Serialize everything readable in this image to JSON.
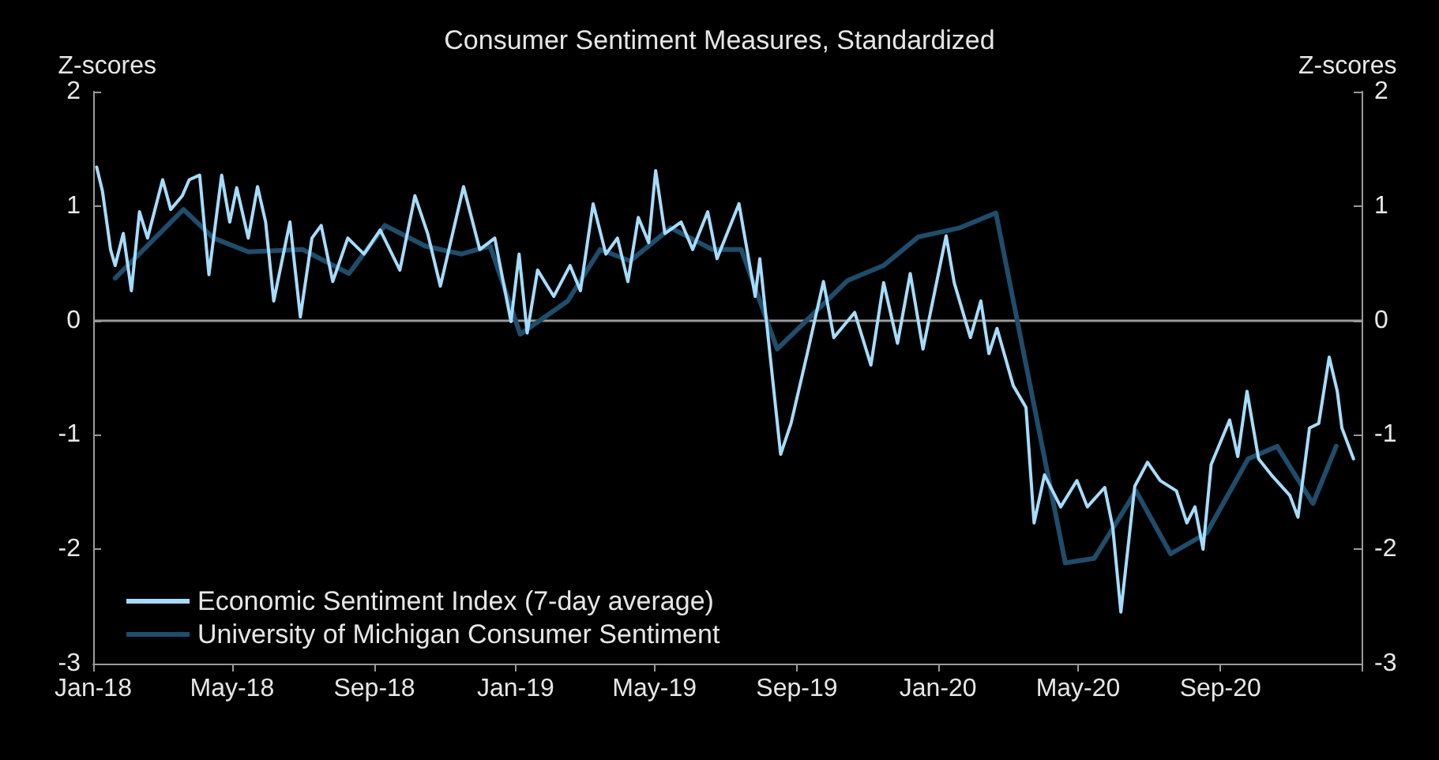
{
  "chart_data": {
    "type": "line",
    "title": "Consumer Sentiment Measures, Standardized",
    "ylabel": "Z-scores",
    "y2label": "Z-scores",
    "ylim": [
      -3,
      2
    ],
    "yticks": [
      -3,
      -2,
      -1,
      0,
      1,
      2
    ],
    "y2lim": [
      -3,
      2
    ],
    "y2ticks": [
      -3,
      -2,
      -1,
      0,
      1,
      2
    ],
    "xlim": [
      "2018-01-01",
      "2021-01-01"
    ],
    "xticks": [
      {
        "value": "2018-01-01",
        "label": "Jan-18"
      },
      {
        "value": "2018-05-01",
        "label": "May-18"
      },
      {
        "value": "2018-09-01",
        "label": "Sep-18"
      },
      {
        "value": "2019-01-01",
        "label": "Jan-19"
      },
      {
        "value": "2019-05-01",
        "label": "May-19"
      },
      {
        "value": "2019-09-01",
        "label": "Sep-19"
      },
      {
        "value": "2020-01-01",
        "label": "Jan-20"
      },
      {
        "value": "2020-05-01",
        "label": "May-20"
      },
      {
        "value": "2020-09-01",
        "label": "Sep-20"
      },
      {
        "value": "2021-01-01",
        "label": null
      }
    ],
    "grid": false,
    "legend": "bottom left",
    "marker": "none",
    "line_style": "solid",
    "ref_lines": [
      {
        "axis": "y",
        "value": 0,
        "color": "#9a9a9a"
      }
    ],
    "series": [
      {
        "name": "Economic Sentiment Index (7-day average)",
        "color": "#a6dcfb",
        "x": [
          "2018-01-04",
          "2018-01-09",
          "2018-01-16",
          "2018-01-20",
          "2018-01-27",
          "2018-02-03",
          "2018-02-10",
          "2018-02-17",
          "2018-03-02",
          "2018-03-09",
          "2018-03-19",
          "2018-03-25",
          "2018-04-03",
          "2018-04-11",
          "2018-04-22",
          "2018-04-29",
          "2018-05-05",
          "2018-05-15",
          "2018-05-23",
          "2018-05-30",
          "2018-06-06",
          "2018-06-20",
          "2018-06-29",
          "2018-07-09",
          "2018-07-17",
          "2018-07-27",
          "2018-08-09",
          "2018-08-23",
          "2018-09-06",
          "2018-09-23",
          "2018-10-06",
          "2018-10-17",
          "2018-10-28",
          "2018-11-17",
          "2018-12-01",
          "2018-12-14",
          "2018-12-28",
          "2019-01-04",
          "2019-01-11",
          "2019-01-20",
          "2019-02-03",
          "2019-02-17",
          "2019-02-26",
          "2019-03-09",
          "2019-03-20",
          "2019-03-30",
          "2019-04-08",
          "2019-04-17",
          "2019-04-26",
          "2019-05-02",
          "2019-05-10",
          "2019-05-24",
          "2019-06-03",
          "2019-06-16",
          "2019-06-24",
          "2019-07-13",
          "2019-07-27",
          "2019-07-31",
          "2019-08-18",
          "2019-08-27",
          "2019-09-10",
          "2019-09-24",
          "2019-10-03",
          "2019-10-21",
          "2019-11-04",
          "2019-11-15",
          "2019-11-27",
          "2019-12-08",
          "2019-12-19",
          "2020-01-08",
          "2020-01-15",
          "2020-01-29",
          "2020-02-07",
          "2020-02-14",
          "2020-02-21",
          "2020-03-06",
          "2020-03-17",
          "2020-03-24",
          "2020-04-02",
          "2020-04-16",
          "2020-04-30",
          "2020-05-09",
          "2020-05-24",
          "2020-05-31",
          "2020-06-07",
          "2020-06-19",
          "2020-06-30",
          "2020-07-11",
          "2020-07-25",
          "2020-08-03",
          "2020-08-10",
          "2020-08-17",
          "2020-08-24",
          "2020-09-09",
          "2020-09-16",
          "2020-09-24",
          "2020-10-04",
          "2020-10-15",
          "2020-10-31",
          "2020-11-07",
          "2020-11-17",
          "2020-11-25",
          "2020-12-04",
          "2020-12-11",
          "2020-12-15",
          "2020-12-25"
        ],
        "values": [
          1.34,
          1.13,
          0.62,
          0.48,
          0.76,
          0.26,
          0.95,
          0.72,
          1.23,
          0.97,
          1.09,
          1.23,
          1.27,
          0.4,
          1.27,
          0.86,
          1.16,
          0.72,
          1.17,
          0.86,
          0.17,
          0.86,
          0.03,
          0.72,
          0.83,
          0.34,
          0.72,
          0.58,
          0.79,
          0.44,
          1.09,
          0.76,
          0.3,
          1.17,
          0.62,
          0.72,
          -0.01,
          0.58,
          -0.11,
          0.44,
          0.21,
          0.48,
          0.26,
          1.02,
          0.58,
          0.72,
          0.34,
          0.9,
          0.68,
          1.31,
          0.76,
          0.86,
          0.62,
          0.95,
          0.54,
          1.02,
          0.21,
          0.54,
          -1.17,
          -0.9,
          -0.29,
          0.34,
          -0.15,
          0.07,
          -0.39,
          0.33,
          -0.2,
          0.41,
          -0.25,
          0.74,
          0.33,
          -0.15,
          0.17,
          -0.29,
          -0.07,
          -0.57,
          -0.76,
          -1.77,
          -1.35,
          -1.63,
          -1.4,
          -1.63,
          -1.46,
          -1.81,
          -2.55,
          -1.45,
          -1.24,
          -1.4,
          -1.49,
          -1.77,
          -1.63,
          -2.0,
          -1.26,
          -0.87,
          -1.19,
          -0.62,
          -1.21,
          -1.35,
          -1.53,
          -1.72,
          -0.94,
          -0.9,
          -0.32,
          -0.62,
          -0.94,
          -1.21
        ]
      },
      {
        "name": "University of Michigan Consumer Sentiment",
        "color": "#1f4d6b",
        "x": [
          "2018-01-20",
          "2018-03-20",
          "2018-04-15",
          "2018-05-15",
          "2018-07-01",
          "2018-08-10",
          "2018-09-10",
          "2018-10-15",
          "2018-11-15",
          "2018-12-10",
          "2019-01-05",
          "2019-02-15",
          "2019-03-15",
          "2019-04-10",
          "2019-05-15",
          "2019-06-20",
          "2019-07-15",
          "2019-08-15",
          "2019-10-15",
          "2019-11-15",
          "2019-12-15",
          "2020-01-20",
          "2020-02-20",
          "2020-04-20",
          "2020-05-15",
          "2020-06-20",
          "2020-07-20",
          "2020-08-20",
          "2020-09-25",
          "2020-10-20",
          "2020-11-20",
          "2020-12-10"
        ],
        "values": [
          0.37,
          0.97,
          0.72,
          0.6,
          0.62,
          0.41,
          0.83,
          0.65,
          0.58,
          0.65,
          -0.12,
          0.17,
          0.62,
          0.52,
          0.81,
          0.62,
          0.62,
          -0.25,
          0.35,
          0.48,
          0.73,
          0.81,
          0.94,
          -2.12,
          -2.08,
          -1.49,
          -2.04,
          -1.86,
          -1.21,
          -1.1,
          -1.6,
          -1.1
        ]
      }
    ]
  }
}
